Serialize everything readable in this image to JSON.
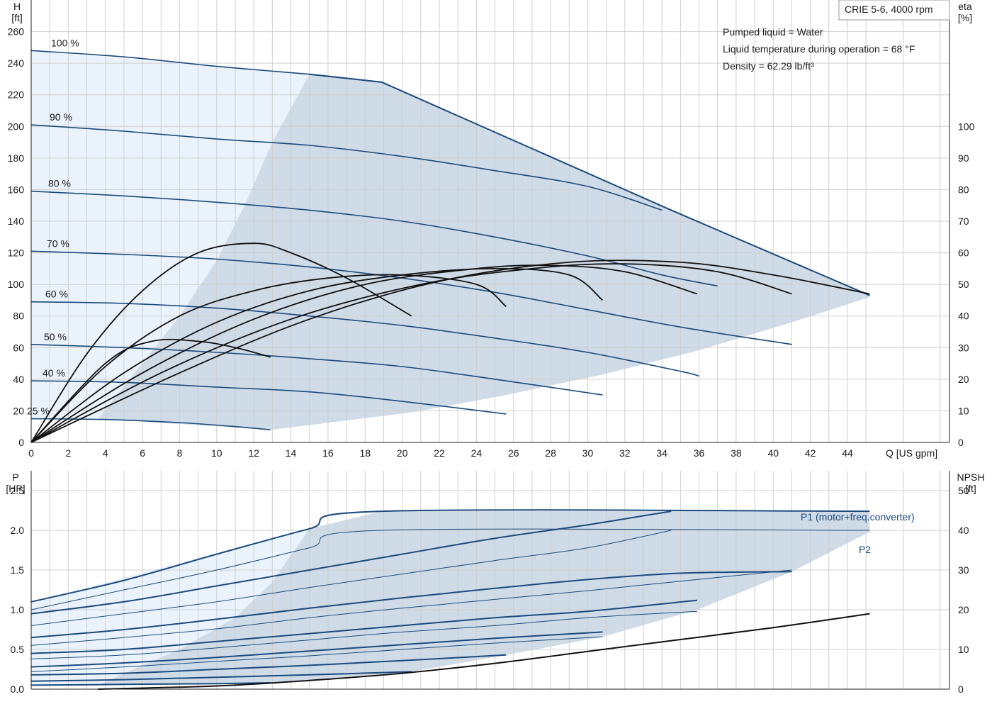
{
  "chart_data": [
    {
      "type": "line",
      "name": "head",
      "yaxis_left": {
        "label_line1": "H",
        "label_line2": "[ft]",
        "ticks": [
          0,
          20,
          40,
          60,
          80,
          100,
          120,
          140,
          160,
          180,
          200,
          220,
          240,
          260
        ],
        "range": [
          0,
          280
        ]
      },
      "yaxis_right": {
        "label_line1": "eta",
        "label_line2": "[%]",
        "ticks": [
          0,
          10,
          20,
          30,
          40,
          50,
          60,
          70,
          80,
          90,
          100
        ],
        "range": [
          0,
          140
        ]
      },
      "xaxis": {
        "label": "Q [US gpm]",
        "ticks": [
          0,
          2,
          4,
          6,
          8,
          10,
          12,
          14,
          16,
          18,
          20,
          22,
          24,
          26,
          28,
          30,
          32,
          34,
          36,
          38,
          40,
          42,
          44
        ],
        "range": [
          0,
          49.5
        ]
      },
      "grid": true,
      "legend_box": "CRIE 5-6, 4000 rpm",
      "notes": [
        "Pumped liquid = Water",
        "Liquid temperature during operation = 68 °F",
        "Density = 62.29 lb/ft³"
      ],
      "speed_curves": [
        {
          "label": "100 %",
          "points": [
            [
              0,
              248
            ],
            [
              5,
              244
            ],
            [
              10,
              238
            ],
            [
              15,
              233
            ],
            [
              18.9,
              228
            ]
          ]
        },
        {
          "label": "90 %",
          "points": [
            [
              0,
              201
            ],
            [
              5,
              197
            ],
            [
              10,
              192
            ],
            [
              15,
              188
            ],
            [
              20,
              181
            ],
            [
              25,
              172
            ],
            [
              30,
              162
            ],
            [
              34,
              147
            ]
          ]
        },
        {
          "label": "80 %",
          "points": [
            [
              0,
              159
            ],
            [
              5,
              156
            ],
            [
              10,
              152
            ],
            [
              15,
              147
            ],
            [
              20,
              140
            ],
            [
              25,
              130
            ],
            [
              30,
              118
            ],
            [
              34,
              106
            ],
            [
              37,
              99
            ]
          ]
        },
        {
          "label": "70 %",
          "points": [
            [
              0,
              121
            ],
            [
              5,
              119
            ],
            [
              10,
              116
            ],
            [
              15,
              111
            ],
            [
              20,
              104
            ],
            [
              25,
              95
            ],
            [
              30,
              84
            ],
            [
              35,
              73
            ],
            [
              41,
              62
            ]
          ]
        },
        {
          "label": "60 %",
          "points": [
            [
              0,
              89
            ],
            [
              5,
              88
            ],
            [
              10,
              85
            ],
            [
              15,
              80
            ],
            [
              20,
              74
            ],
            [
              25,
              66
            ],
            [
              30,
              57
            ],
            [
              35,
              45
            ],
            [
              36,
              42
            ]
          ]
        },
        {
          "label": "50 %",
          "points": [
            [
              0,
              62
            ],
            [
              5,
              60
            ],
            [
              10,
              57
            ],
            [
              15,
              53
            ],
            [
              20,
              48
            ],
            [
              25,
              40
            ],
            [
              30.8,
              30
            ]
          ]
        },
        {
          "label": "40 %",
          "points": [
            [
              0,
              39
            ],
            [
              5,
              38
            ],
            [
              10,
              35
            ],
            [
              15,
              32
            ],
            [
              20,
              26
            ],
            [
              25.6,
              18
            ]
          ]
        },
        {
          "label": "25 %",
          "points": [
            [
              0,
              15
            ],
            [
              4,
              14.5
            ],
            [
              8,
              12.5
            ],
            [
              11,
              10
            ],
            [
              12.9,
              8
            ]
          ]
        }
      ],
      "upper_limit_curve": [
        [
          0,
          248
        ],
        [
          15,
          233
        ],
        [
          18.9,
          228
        ],
        [
          34.5,
          147
        ],
        [
          45.2,
          93
        ]
      ],
      "lower_limit_curve": [
        [
          3.6,
          15
        ],
        [
          12.9,
          8
        ],
        [
          20.5,
          19
        ],
        [
          25.6,
          30
        ],
        [
          30.8,
          43
        ],
        [
          35.9,
          58
        ],
        [
          41,
          76
        ],
        [
          45.2,
          92
        ]
      ],
      "min_speed_boundary": [
        [
          15,
          233
        ],
        [
          13,
          190
        ],
        [
          11.5,
          150
        ],
        [
          10,
          115
        ],
        [
          8,
          80
        ],
        [
          6,
          50
        ],
        [
          3.6,
          15
        ]
      ],
      "eta_curves": [
        {
          "points": [
            [
              0,
              0
            ],
            [
              3,
              28
            ],
            [
              6,
              48
            ],
            [
              9,
              60
            ],
            [
              12,
              63
            ],
            [
              14,
              60
            ],
            [
              17,
              52
            ],
            [
              20.5,
              40
            ]
          ]
        },
        {
          "points": [
            [
              0,
              0
            ],
            [
              4,
              24
            ],
            [
              8,
              40
            ],
            [
              12,
              48
            ],
            [
              16,
              52
            ],
            [
              20,
              53
            ],
            [
              24,
              50
            ],
            [
              25.6,
              43
            ]
          ]
        },
        {
          "points": [
            [
              0,
              0
            ],
            [
              5,
              22
            ],
            [
              10,
              38
            ],
            [
              15,
              48
            ],
            [
              20,
              53
            ],
            [
              25,
              55
            ],
            [
              29,
              53
            ],
            [
              30.8,
              45
            ]
          ]
        },
        {
          "points": [
            [
              0,
              0
            ],
            [
              6,
              22
            ],
            [
              12,
              39
            ],
            [
              18,
              50
            ],
            [
              24,
              55
            ],
            [
              28,
              56
            ],
            [
              32,
              54
            ],
            [
              35.9,
              47
            ]
          ]
        },
        {
          "points": [
            [
              0,
              0
            ],
            [
              7,
              22
            ],
            [
              14,
              39
            ],
            [
              21,
              50
            ],
            [
              27,
              55
            ],
            [
              32,
              56.5
            ],
            [
              37,
              54
            ],
            [
              41,
              47
            ]
          ]
        },
        {
          "points": [
            [
              0,
              0
            ],
            [
              8,
              22
            ],
            [
              15,
              39
            ],
            [
              22,
              51
            ],
            [
              29,
              57
            ],
            [
              35,
              57
            ],
            [
              40,
              53
            ],
            [
              45.2,
              47
            ]
          ]
        },
        {
          "points": [
            [
              0,
              0
            ],
            [
              4,
              25
            ],
            [
              6.5,
              32
            ],
            [
              9,
              32
            ],
            [
              11,
              30
            ],
            [
              12.9,
              27
            ]
          ]
        }
      ]
    },
    {
      "type": "line",
      "name": "power_npsh",
      "yaxis_left": {
        "label_line1": "P",
        "label_line2": "[HP]",
        "ticks": [
          0.0,
          0.5,
          1.0,
          1.5,
          2.0,
          2.5
        ],
        "range": [
          0,
          2.75
        ]
      },
      "yaxis_right": {
        "label_line1": "NPSH",
        "label_line2": "[ft]",
        "ticks": [
          0,
          10,
          20,
          30,
          40,
          50
        ],
        "range": [
          0,
          55
        ]
      },
      "xaxis": {
        "range": [
          0,
          49.5
        ]
      },
      "grid": true,
      "series_labels": [
        "P1 (motor+freq.converter)",
        "P2"
      ],
      "p1_curves": [
        {
          "points": [
            [
              0,
              1.1
            ],
            [
              5,
              1.37
            ],
            [
              10,
              1.7
            ],
            [
              15,
              2.02
            ],
            [
              18.9,
              2.24
            ],
            [
              45.2,
              2.24
            ]
          ]
        },
        {
          "points": [
            [
              0,
              0.95
            ],
            [
              5,
              1.1
            ],
            [
              10,
              1.3
            ],
            [
              15,
              1.5
            ],
            [
              20,
              1.7
            ],
            [
              25,
              1.9
            ],
            [
              30,
              2.07
            ],
            [
              34.5,
              2.24
            ]
          ]
        },
        {
          "points": [
            [
              0,
              0.65
            ],
            [
              5,
              0.75
            ],
            [
              10,
              0.88
            ],
            [
              15,
              1.02
            ],
            [
              20,
              1.15
            ],
            [
              25,
              1.27
            ],
            [
              30,
              1.38
            ],
            [
              35,
              1.46
            ],
            [
              41,
              1.48
            ]
          ]
        },
        {
          "points": [
            [
              0,
              0.45
            ],
            [
              5,
              0.5
            ],
            [
              10,
              0.6
            ],
            [
              15,
              0.7
            ],
            [
              20,
              0.8
            ],
            [
              25,
              0.9
            ],
            [
              30,
              0.98
            ],
            [
              35.9,
              1.12
            ]
          ]
        },
        {
          "points": [
            [
              0,
              0.28
            ],
            [
              5,
              0.33
            ],
            [
              10,
              0.4
            ],
            [
              15,
              0.48
            ],
            [
              20,
              0.56
            ],
            [
              25,
              0.64
            ],
            [
              30.8,
              0.72
            ]
          ]
        },
        {
          "points": [
            [
              0,
              0.18
            ],
            [
              5,
              0.2
            ],
            [
              10,
              0.25
            ],
            [
              15,
              0.3
            ],
            [
              20,
              0.36
            ],
            [
              25.6,
              0.43
            ]
          ]
        },
        {
          "points": [
            [
              0,
              0.1
            ],
            [
              5,
              0.12
            ],
            [
              10,
              0.15
            ],
            [
              15,
              0.18
            ],
            [
              20.5,
              0.22
            ]
          ]
        },
        {
          "points": [
            [
              0,
              0.05
            ],
            [
              5,
              0.06
            ],
            [
              10,
              0.07
            ],
            [
              12.9,
              0.08
            ]
          ]
        }
      ],
      "p2_curves": [
        {
          "points": [
            [
              0,
              1.0
            ],
            [
              5,
              1.25
            ],
            [
              10,
              1.5
            ],
            [
              15,
              1.78
            ],
            [
              18.9,
              2.0
            ],
            [
              45.2,
              2.0
            ]
          ]
        },
        {
          "points": [
            [
              0,
              0.8
            ],
            [
              5,
              0.95
            ],
            [
              10,
              1.1
            ],
            [
              15,
              1.28
            ],
            [
              20,
              1.45
            ],
            [
              25,
              1.62
            ],
            [
              30,
              1.78
            ],
            [
              34.5,
              2.0
            ]
          ]
        },
        {
          "points": [
            [
              0,
              0.55
            ],
            [
              5,
              0.65
            ],
            [
              10,
              0.76
            ],
            [
              15,
              0.9
            ],
            [
              20,
              1.02
            ],
            [
              25,
              1.13
            ],
            [
              30,
              1.24
            ],
            [
              35,
              1.36
            ],
            [
              41,
              1.5
            ]
          ]
        },
        {
          "points": [
            [
              0,
              0.38
            ],
            [
              5,
              0.43
            ],
            [
              10,
              0.52
            ],
            [
              15,
              0.62
            ],
            [
              20,
              0.72
            ],
            [
              25,
              0.8
            ],
            [
              30,
              0.9
            ],
            [
              35.9,
              0.98
            ]
          ]
        },
        {
          "points": [
            [
              0,
              0.22
            ],
            [
              5,
              0.28
            ],
            [
              10,
              0.35
            ],
            [
              15,
              0.42
            ],
            [
              20,
              0.5
            ],
            [
              25,
              0.58
            ],
            [
              30.8,
              0.66
            ]
          ]
        }
      ],
      "upper_limit_curve": [
        [
          0,
          1.1
        ],
        [
          15,
          2.02
        ],
        [
          18.9,
          2.24
        ],
        [
          45.2,
          2.24
        ]
      ],
      "lower_limit_curve": [
        [
          3.6,
          0.05
        ],
        [
          12.9,
          0.08
        ],
        [
          20.5,
          0.22
        ],
        [
          25.6,
          0.43
        ],
        [
          30.8,
          0.66
        ],
        [
          35.9,
          1.0
        ],
        [
          41,
          1.48
        ],
        [
          45.2,
          1.98
        ]
      ],
      "min_speed_boundary": [
        [
          15,
          2.02
        ],
        [
          13,
          1.35
        ],
        [
          11,
          0.9
        ],
        [
          8,
          0.5
        ],
        [
          6,
          0.3
        ],
        [
          3.6,
          0.05
        ]
      ],
      "npsh_curve": [
        [
          3.6,
          0.0
        ],
        [
          10,
          0.8
        ],
        [
          15,
          2.2
        ],
        [
          20,
          4.0
        ],
        [
          25,
          6.5
        ],
        [
          30,
          9.5
        ],
        [
          35,
          12.5
        ],
        [
          40,
          15.5
        ],
        [
          45.2,
          19
        ]
      ]
    }
  ]
}
